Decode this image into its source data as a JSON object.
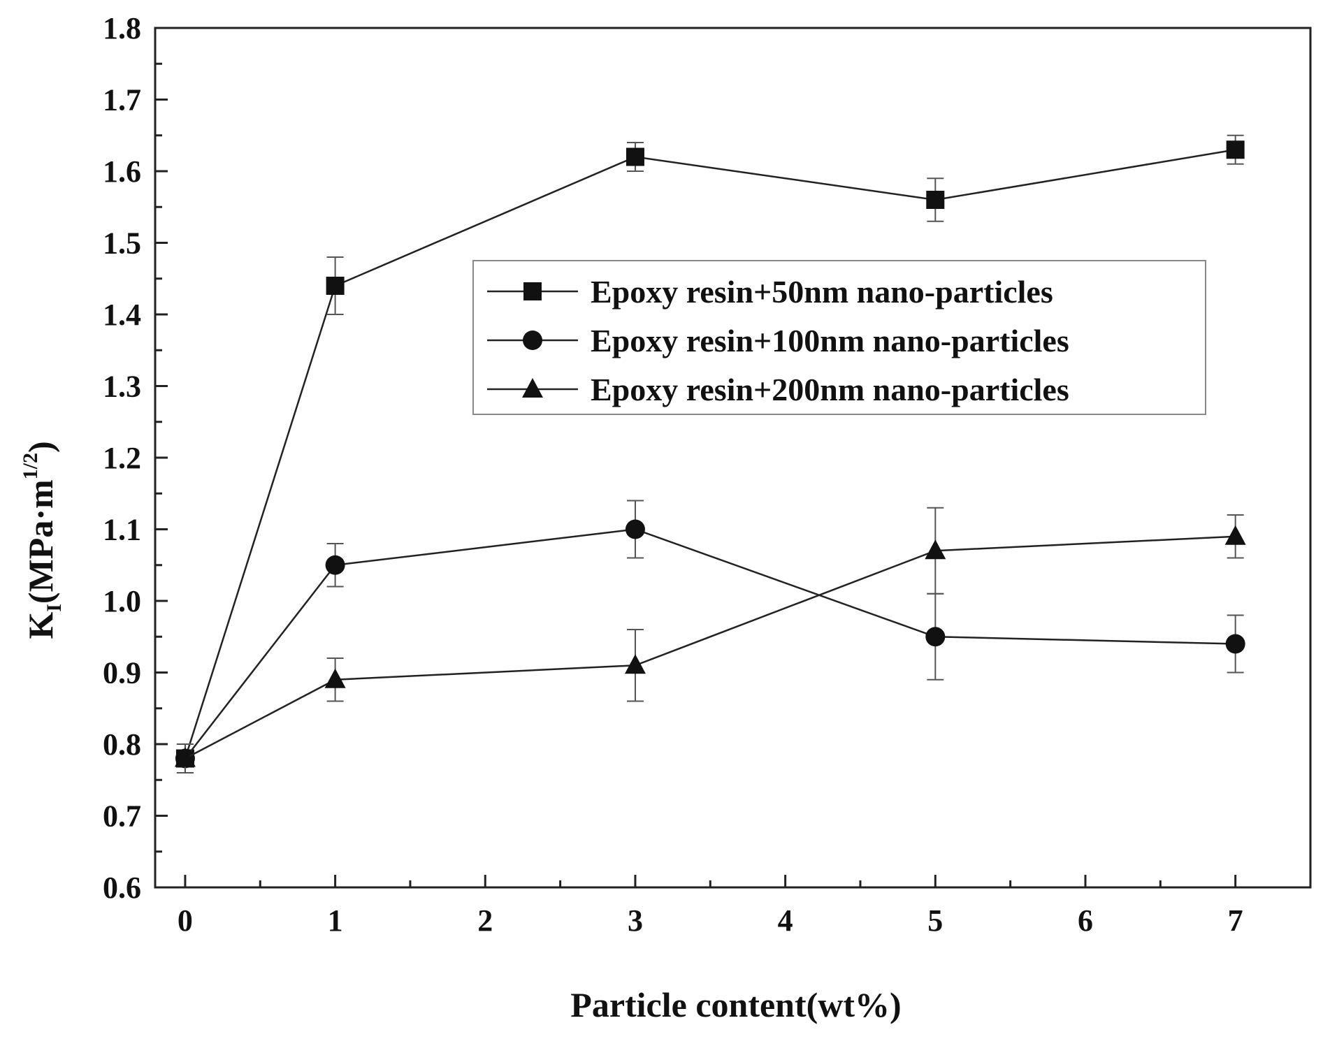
{
  "chart_data": {
    "type": "line",
    "x": [
      0,
      1,
      3,
      5,
      7
    ],
    "xlabel": "Particle content(wt%)",
    "ylabel": {
      "main": "K",
      "sub": "I",
      "unit": "(MPa·m",
      "exponent": "1/2",
      "close": ")"
    },
    "xlim": [
      -0.2,
      7.5
    ],
    "ylim": [
      0.6,
      1.8
    ],
    "xticks": [
      0,
      1,
      2,
      3,
      4,
      5,
      6,
      7
    ],
    "xtick_labels": [
      "0",
      "1",
      "2",
      "3",
      "4",
      "5",
      "6",
      "7"
    ],
    "yticks": [
      0.6,
      0.7,
      0.8,
      0.9,
      1.0,
      1.1,
      1.2,
      1.3,
      1.4,
      1.5,
      1.6,
      1.7,
      1.8
    ],
    "ytick_labels": [
      "0.6",
      "0.7",
      "0.8",
      "0.9",
      "1.0",
      "1.1",
      "1.2",
      "1.3",
      "1.4",
      "1.5",
      "1.6",
      "1.7",
      "1.8"
    ],
    "grid": false,
    "legend_position": "center-right",
    "series": [
      {
        "name": "Epoxy resin+50nm nano-particles",
        "marker": "square",
        "values": [
          0.78,
          1.44,
          1.62,
          1.56,
          1.63
        ],
        "errors": [
          0.02,
          0.04,
          0.02,
          0.03,
          0.02
        ]
      },
      {
        "name": "Epoxy resin+100nm nano-particles",
        "marker": "circle",
        "values": [
          0.78,
          1.05,
          1.1,
          0.95,
          0.94
        ],
        "errors": [
          0.02,
          0.03,
          0.04,
          0.06,
          0.04
        ]
      },
      {
        "name": "Epoxy resin+200nm nano-particles",
        "marker": "triangle",
        "values": [
          0.78,
          0.89,
          0.91,
          1.07,
          1.09
        ],
        "errors": [
          0.02,
          0.03,
          0.05,
          0.06,
          0.03
        ]
      }
    ],
    "colors": {
      "line": "#222222",
      "marker": "#111111",
      "errorbar": "#555555",
      "axis": "#222222",
      "legend_border": "#888888"
    }
  }
}
